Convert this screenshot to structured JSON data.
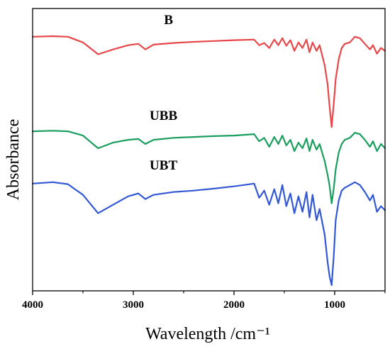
{
  "chart_data": {
    "type": "line",
    "title": "",
    "xlabel": "Wavelength /cm⁻¹",
    "ylabel": "Absorbance",
    "xlim": [
      4000,
      500
    ],
    "x_reversed": true,
    "y_ticks_shown": false,
    "xticks": [
      4000,
      3000,
      2000,
      1000
    ],
    "tick_labels": [
      "4000",
      "3000",
      "2000",
      "1000"
    ],
    "ylim": [
      0,
      10
    ],
    "grid": false,
    "legend": "none",
    "series": [
      {
        "name": "B",
        "color": "#e8474a",
        "points": [
          [
            4000,
            9.0
          ],
          [
            3800,
            9.02
          ],
          [
            3650,
            9.0
          ],
          [
            3500,
            8.8
          ],
          [
            3350,
            8.38
          ],
          [
            3200,
            8.55
          ],
          [
            3050,
            8.7
          ],
          [
            2950,
            8.75
          ],
          [
            2880,
            8.55
          ],
          [
            2800,
            8.72
          ],
          [
            2600,
            8.78
          ],
          [
            2400,
            8.82
          ],
          [
            2200,
            8.85
          ],
          [
            2000,
            8.88
          ],
          [
            1800,
            8.9
          ],
          [
            1750,
            8.7
          ],
          [
            1700,
            8.78
          ],
          [
            1650,
            8.6
          ],
          [
            1600,
            8.9
          ],
          [
            1560,
            8.7
          ],
          [
            1520,
            8.95
          ],
          [
            1480,
            8.68
          ],
          [
            1440,
            8.88
          ],
          [
            1400,
            8.5
          ],
          [
            1360,
            8.8
          ],
          [
            1320,
            8.6
          ],
          [
            1280,
            8.9
          ],
          [
            1250,
            8.45
          ],
          [
            1220,
            8.8
          ],
          [
            1180,
            8.5
          ],
          [
            1150,
            8.7
          ],
          [
            1100,
            8.0
          ],
          [
            1070,
            7.3
          ],
          [
            1050,
            6.5
          ],
          [
            1030,
            5.8
          ],
          [
            1010,
            6.6
          ],
          [
            990,
            7.5
          ],
          [
            960,
            8.2
          ],
          [
            930,
            8.6
          ],
          [
            900,
            8.75
          ],
          [
            850,
            8.8
          ],
          [
            800,
            9.0
          ],
          [
            750,
            8.95
          ],
          [
            700,
            8.75
          ],
          [
            650,
            8.55
          ],
          [
            620,
            8.7
          ],
          [
            580,
            8.4
          ],
          [
            540,
            8.6
          ],
          [
            500,
            8.5
          ]
        ]
      },
      {
        "name": "UBB",
        "color": "#1a9e5e",
        "points": [
          [
            4000,
            5.65
          ],
          [
            3800,
            5.67
          ],
          [
            3650,
            5.65
          ],
          [
            3500,
            5.5
          ],
          [
            3350,
            5.05
          ],
          [
            3200,
            5.25
          ],
          [
            3050,
            5.35
          ],
          [
            2950,
            5.38
          ],
          [
            2880,
            5.2
          ],
          [
            2800,
            5.35
          ],
          [
            2600,
            5.42
          ],
          [
            2400,
            5.45
          ],
          [
            2200,
            5.48
          ],
          [
            2000,
            5.5
          ],
          [
            1800,
            5.55
          ],
          [
            1750,
            5.3
          ],
          [
            1700,
            5.42
          ],
          [
            1650,
            5.1
          ],
          [
            1600,
            5.45
          ],
          [
            1560,
            5.2
          ],
          [
            1520,
            5.5
          ],
          [
            1480,
            5.15
          ],
          [
            1440,
            5.35
          ],
          [
            1400,
            4.95
          ],
          [
            1360,
            5.25
          ],
          [
            1320,
            5.05
          ],
          [
            1280,
            5.4
          ],
          [
            1250,
            4.95
          ],
          [
            1220,
            5.35
          ],
          [
            1180,
            5.0
          ],
          [
            1150,
            5.2
          ],
          [
            1100,
            4.6
          ],
          [
            1070,
            4.1
          ],
          [
            1050,
            3.7
          ],
          [
            1030,
            3.1
          ],
          [
            1010,
            3.6
          ],
          [
            990,
            4.3
          ],
          [
            960,
            4.9
          ],
          [
            930,
            5.2
          ],
          [
            900,
            5.35
          ],
          [
            850,
            5.42
          ],
          [
            800,
            5.6
          ],
          [
            750,
            5.55
          ],
          [
            700,
            5.35
          ],
          [
            650,
            5.1
          ],
          [
            620,
            5.3
          ],
          [
            580,
            4.95
          ],
          [
            540,
            5.2
          ],
          [
            500,
            5.05
          ]
        ]
      },
      {
        "name": "UBT",
        "color": "#3358d6",
        "points": [
          [
            4000,
            3.8
          ],
          [
            3800,
            3.85
          ],
          [
            3650,
            3.78
          ],
          [
            3500,
            3.4
          ],
          [
            3350,
            2.75
          ],
          [
            3200,
            3.05
          ],
          [
            3050,
            3.35
          ],
          [
            2950,
            3.45
          ],
          [
            2880,
            3.25
          ],
          [
            2800,
            3.4
          ],
          [
            2600,
            3.5
          ],
          [
            2400,
            3.55
          ],
          [
            2200,
            3.62
          ],
          [
            2000,
            3.7
          ],
          [
            1800,
            3.8
          ],
          [
            1750,
            3.3
          ],
          [
            1700,
            3.55
          ],
          [
            1650,
            3.05
          ],
          [
            1600,
            3.6
          ],
          [
            1560,
            3.1
          ],
          [
            1520,
            3.75
          ],
          [
            1480,
            3.0
          ],
          [
            1440,
            3.45
          ],
          [
            1400,
            2.75
          ],
          [
            1360,
            3.35
          ],
          [
            1320,
            2.8
          ],
          [
            1280,
            3.5
          ],
          [
            1250,
            2.6
          ],
          [
            1220,
            3.4
          ],
          [
            1180,
            2.5
          ],
          [
            1150,
            2.9
          ],
          [
            1100,
            2.0
          ],
          [
            1070,
            1.0
          ],
          [
            1050,
            0.5
          ],
          [
            1030,
            0.2
          ],
          [
            1010,
            1.2
          ],
          [
            990,
            2.5
          ],
          [
            960,
            3.2
          ],
          [
            930,
            3.55
          ],
          [
            900,
            3.65
          ],
          [
            850,
            3.75
          ],
          [
            800,
            3.85
          ],
          [
            750,
            3.75
          ],
          [
            700,
            3.5
          ],
          [
            650,
            3.2
          ],
          [
            620,
            3.4
          ],
          [
            580,
            2.8
          ],
          [
            540,
            3.0
          ],
          [
            500,
            2.85
          ]
        ]
      }
    ],
    "annotations": [
      {
        "text": "B",
        "at": [
          2650,
          9.45
        ]
      },
      {
        "text": "UBB",
        "at": [
          2700,
          6.05
        ]
      },
      {
        "text": "UBT",
        "at": [
          2700,
          4.3
        ]
      }
    ]
  }
}
